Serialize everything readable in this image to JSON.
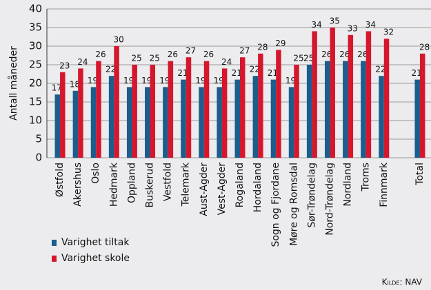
{
  "chart_data": {
    "type": "bar",
    "y_label": "Antall måneder",
    "source": "Kilde: NAV",
    "categories": [
      "Østfold",
      "Akershus",
      "Oslo",
      "Hedmark",
      "Oppland",
      "Buskerud",
      "Vestfold",
      "Telemark",
      "Aust-Agder",
      "Vest-Agder",
      "Rogaland",
      "Hordaland",
      "Sogn og Fjordane",
      "Møre og Romsdal",
      "Sør-Trøndelag",
      "Nord-Trøndelag",
      "Nordland",
      "Troms",
      "Finnmark",
      null,
      "Total"
    ],
    "series": [
      {
        "name": "Varighet tiltak",
        "color": "#1b5d8c",
        "values": [
          17,
          18,
          19,
          22,
          19,
          19,
          19,
          21,
          19,
          19,
          21,
          22,
          21,
          19,
          25,
          26,
          26,
          26,
          22,
          null,
          21
        ]
      },
      {
        "name": "Varighet skole",
        "color": "#d5172e",
        "values": [
          23,
          24,
          26,
          30,
          25,
          25,
          26,
          27,
          26,
          24,
          27,
          28,
          29,
          25,
          34,
          35,
          33,
          34,
          32,
          null,
          28
        ]
      }
    ],
    "ylim": [
      0,
      40
    ],
    "yticks": [
      0,
      5,
      10,
      15,
      20,
      25,
      30,
      35,
      40
    ],
    "grid": true
  }
}
